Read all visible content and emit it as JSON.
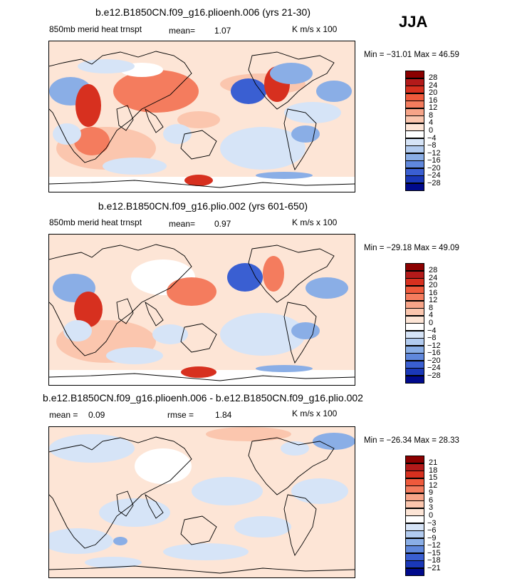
{
  "season": "JJA",
  "panels": [
    {
      "title": "b.e12.B1850CN.f09_g16.plioenh.006 (yrs 21-30)",
      "left_label": "850mb merid heat trnspt",
      "mean_label": "mean=",
      "mean_value": "1.07",
      "units": "K m/s x 100",
      "min_max": "Min = −31.01 Max =  46.59",
      "colorbar_labels": [
        "28",
        "24",
        "20",
        "16",
        "12",
        "8",
        "4",
        "0",
        "−4",
        "−8",
        "−12",
        "−16",
        "−20",
        "−24",
        "−28"
      ]
    },
    {
      "title": "b.e12.B1850CN.f09_g16.plio.002 (yrs 601-650)",
      "left_label": "850mb merid heat trnspt",
      "mean_label": "mean=",
      "mean_value": "0.97",
      "units": "K m/s x 100",
      "min_max": "Min = −29.18 Max =  49.09",
      "colorbar_labels": [
        "28",
        "24",
        "20",
        "16",
        "12",
        "8",
        "4",
        "0",
        "−4",
        "−8",
        "−12",
        "−16",
        "−20",
        "−24",
        "−28"
      ]
    },
    {
      "title": "b.e12.B1850CN.f09_g16.plioenh.006 - b.e12.B1850CN.f09_g16.plio.002",
      "mean_label": "mean =",
      "mean_value": "0.09",
      "rmse_label": "rmse =",
      "rmse_value": "1.84",
      "units": "K m/s x 100",
      "min_max": "Min = −26.34 Max =  28.33",
      "colorbar_labels": [
        "21",
        "18",
        "15",
        "12",
        "9",
        "6",
        "3",
        "0",
        "−3",
        "−6",
        "−9",
        "−12",
        "−15",
        "−18",
        "−21"
      ]
    }
  ],
  "colorbar_colors": [
    "#8b0000",
    "#b31a1a",
    "#d7301f",
    "#ef5a3c",
    "#f47c5e",
    "#f7a488",
    "#fbc6ae",
    "#fde5d6",
    "#ffffff",
    "#d6e4f7",
    "#b2cbef",
    "#8aaee6",
    "#6088dc",
    "#3a5fd2",
    "#1a38b8",
    "#000a8c"
  ],
  "field_colors": {
    "base": "#fde5d6",
    "pos_light": "#fbc6ae",
    "pos_mid": "#f47c5e",
    "pos_strong": "#d7301f",
    "neg_light": "#d6e4f7",
    "neg_mid": "#8aaee6",
    "neg_strong": "#3a5fd2",
    "white": "#ffffff",
    "coast": "#000000"
  }
}
